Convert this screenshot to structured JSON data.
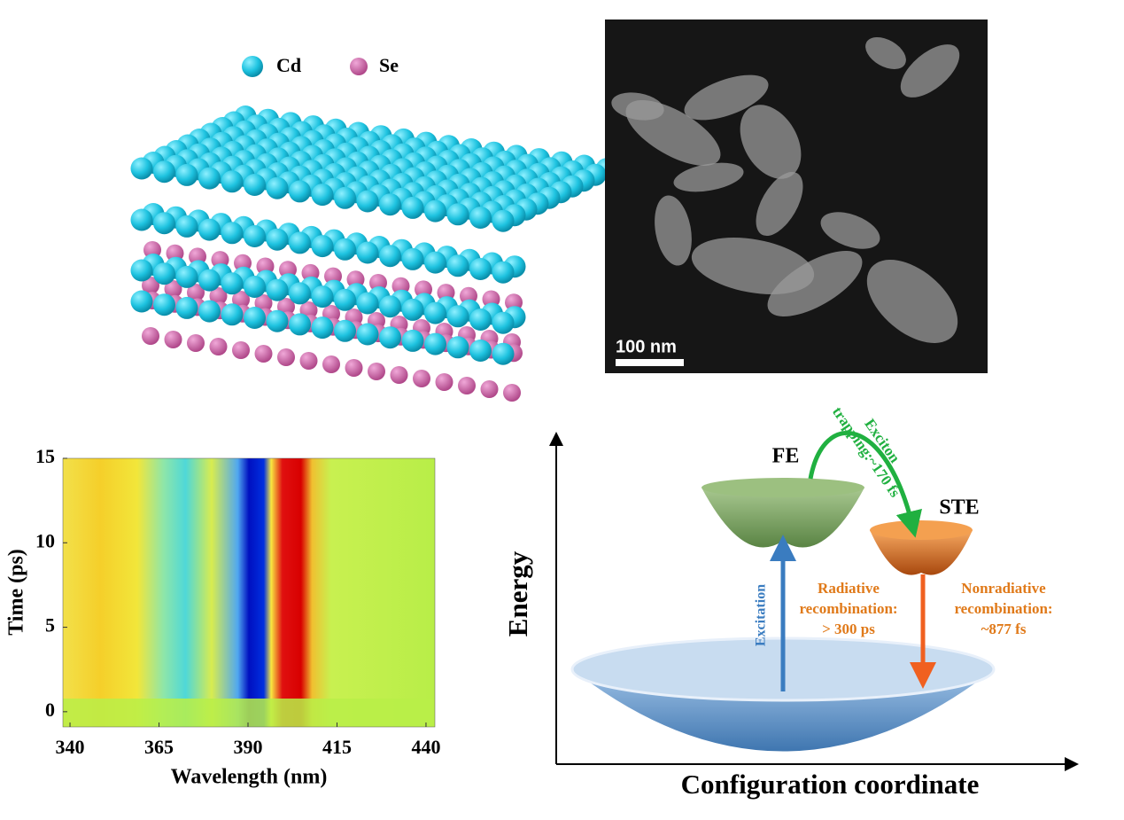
{
  "panel_a": {
    "legend": [
      "Cd",
      "Se"
    ]
  },
  "panel_b": {
    "scale_bar": "100 nm"
  },
  "panel_c": {
    "type": "heatmap",
    "x_label": "Wavelength (nm)",
    "y_label": "Time (ps)",
    "xlim": [
      338,
      442.5
    ],
    "xticks": [
      340,
      365,
      390,
      415,
      440
    ],
    "ylim": [
      -0.9,
      15
    ],
    "yticks": [
      0,
      5,
      10,
      15
    ]
  },
  "panel_d": {
    "x_label": "Configuration coordinate",
    "y_label": "Energy",
    "fe": "FE",
    "ste": "STE",
    "trapping": [
      "Exciton",
      "trapping:~170 fs"
    ],
    "excitation": "Excitation",
    "radiative": [
      "Radiative",
      "recombination:",
      "> 300 ps"
    ],
    "nonradiative": [
      "Nonradiative",
      "recombination:",
      "~877 fs"
    ]
  }
}
